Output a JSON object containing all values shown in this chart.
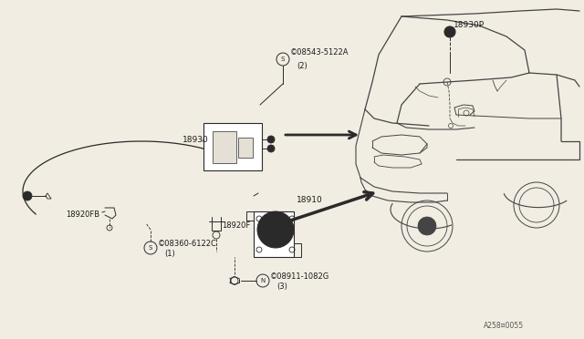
{
  "bg_color": "#f2ede3",
  "line_color": "#2a2a2a",
  "car_line_color": "#444444",
  "text_color": "#1a1a1a",
  "ref_code": "A258¤0055",
  "parts_label_18930P": "18930P",
  "parts_label_screw1": "©08543-5122A\n(2)",
  "parts_label_18930": "18930",
  "parts_label_18920FB": "18920FB",
  "parts_label_screw2": "©08360-6122C\n(1)",
  "parts_label_18920F": "18920F",
  "parts_label_18910": "18910",
  "parts_label_nut": "⒣ 08911-1082G\n(3)"
}
